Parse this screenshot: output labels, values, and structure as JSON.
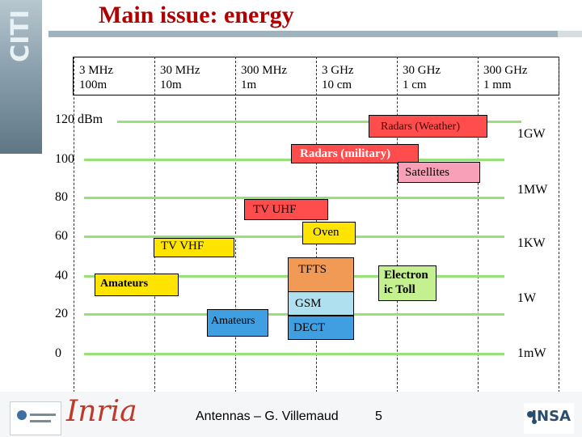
{
  "title": "Main issue: energy",
  "frequencies": [
    {
      "freq": "3 MHz",
      "wavelength": "100m"
    },
    {
      "freq": "30 MHz",
      "wavelength": "10m"
    },
    {
      "freq": "300 MHz",
      "wavelength": "1m"
    },
    {
      "freq": "3 GHz",
      "wavelength": "10 cm"
    },
    {
      "freq": "30 GHz",
      "wavelength": "1 cm"
    },
    {
      "freq": "300 GHz",
      "wavelength": "1 mm"
    }
  ],
  "dbm_levels": [
    "120 dBm",
    "100",
    "80",
    "60",
    "40",
    "20",
    "0"
  ],
  "power_levels": [
    "1GW",
    "1MW",
    "1KW",
    "1W",
    "1mW"
  ],
  "regions": {
    "radars_weather": "Radars (Weather)",
    "radars_military": "Radars (military)",
    "satellites": "Satellites",
    "tv_uhf": "TV UHF",
    "oven": "Oven",
    "tv_vhf": "TV VHF",
    "tfts": "TFTS",
    "electronic_toll": "Electron ic Toll",
    "amateurs_hf": "Amateurs",
    "gsm": "GSM",
    "amateurs_uhf": "Amateurs",
    "dect": "DECT"
  },
  "colors": {
    "title": "#b00000",
    "green_line": "#99e07a",
    "red": "#ff4c4c",
    "yellow": "#ffe400",
    "blue": "#3f9fe0",
    "orange": "#f09a55",
    "light_blue": "#aee0f0",
    "pink": "#f8a0b8",
    "green": "#c4f090"
  },
  "footer": {
    "text": "Antennas – G. Villemaud",
    "page": "5"
  },
  "logos": {
    "side": "CITI",
    "inria": "Inria",
    "insa": "INSA"
  }
}
